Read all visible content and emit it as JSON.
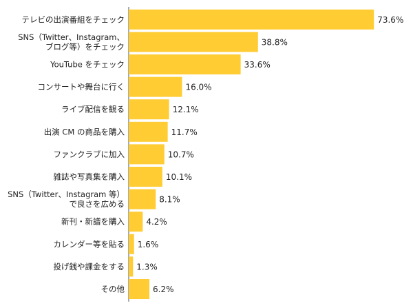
{
  "chart_data": {
    "type": "bar",
    "orientation": "horizontal",
    "categories": [
      [
        "テレビの出演番組をチェック"
      ],
      [
        "SNS（Twitter、Instagram、",
        "ブログ等）をチェック"
      ],
      [
        "YouTube をチェック"
      ],
      [
        "コンサートや舞台に行く"
      ],
      [
        "ライブ配信を観る"
      ],
      [
        "出演 CM の商品を購入"
      ],
      [
        "ファンクラブに加入"
      ],
      [
        "雑誌や写真集を購入"
      ],
      [
        "SNS（Twitter、Instagram 等）",
        "で良さを広める"
      ],
      [
        "新刊・新譜を購入"
      ],
      [
        "カレンダー等を貼る"
      ],
      [
        "投げ銭や課金をする"
      ],
      [
        "その他"
      ]
    ],
    "values": [
      73.6,
      38.8,
      33.6,
      16.0,
      12.1,
      11.7,
      10.7,
      10.1,
      8.1,
      4.2,
      1.6,
      1.3,
      6.2
    ],
    "value_labels": [
      "73.6%",
      "38.8%",
      "33.6%",
      "16.0%",
      "12.1%",
      "11.7%",
      "10.7%",
      "10.1%",
      "8.1%",
      "4.2%",
      "1.6%",
      "1.3%",
      "6.2%"
    ],
    "xlim": [
      0,
      100
    ],
    "grid": false,
    "legend": "none",
    "bar_color": "#ffcc33",
    "axis_color": "#555555"
  }
}
